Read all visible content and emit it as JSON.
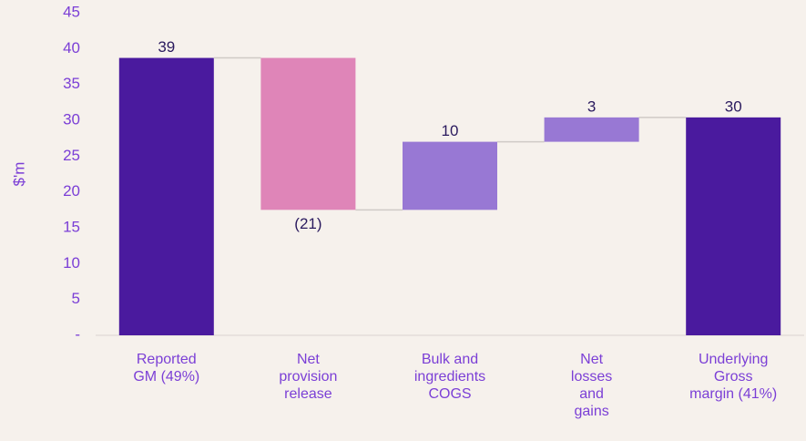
{
  "chart_data": {
    "type": "waterfall",
    "ylabel": "$'m",
    "categories": [
      [
        "Reported",
        "GM (49%)"
      ],
      [
        "Net",
        "provision",
        "release"
      ],
      [
        "Bulk and",
        "ingredients",
        "COGS"
      ],
      [
        "Net",
        "losses",
        "and",
        "gains"
      ],
      [
        "Underlying",
        "Gross",
        "margin (41%)"
      ]
    ],
    "measure": [
      "absolute",
      "relative",
      "relative",
      "relative",
      "total"
    ],
    "values": [
      38.7,
      -21.2,
      9.5,
      3.4,
      30.4
    ],
    "value_labels": [
      "39",
      "(21)",
      "10",
      "3",
      "30"
    ],
    "colors": [
      "#4a1a9e",
      "#df85b8",
      "#9878d4",
      "#9878d4",
      "#4a1a9e"
    ],
    "ylim": [
      0,
      45
    ],
    "yticks": [
      {
        "value": 0,
        "label": "-"
      },
      5,
      10,
      15,
      20,
      25,
      30,
      35,
      40,
      45
    ]
  }
}
